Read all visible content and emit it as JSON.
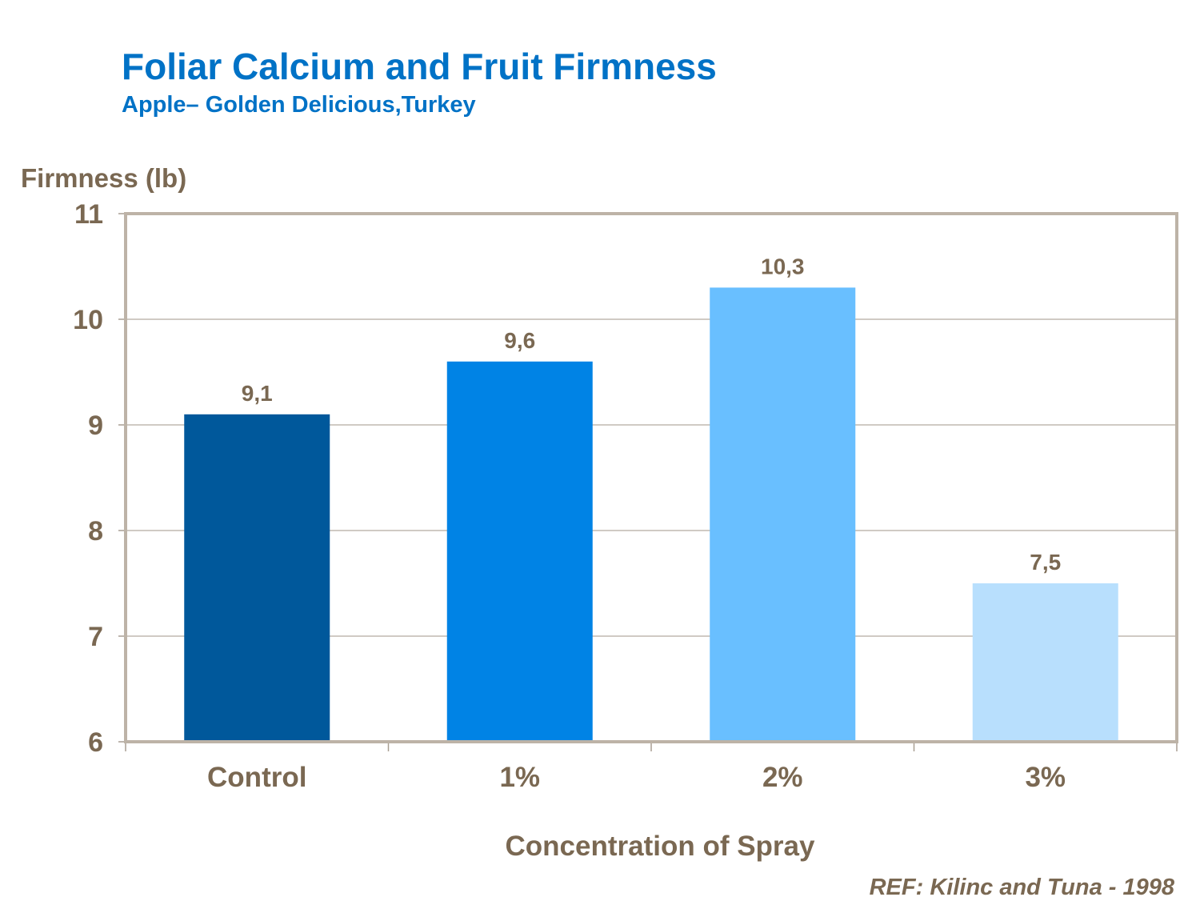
{
  "chart_data": {
    "type": "bar",
    "title": "Foliar Calcium and Fruit Firmness",
    "subtitle": "Apple– Golden Delicious,Turkey",
    "ylabel": "Firmness (lb)",
    "xlabel": "Concentration of Spray",
    "categories": [
      "Control",
      "1%",
      "2%",
      "3%"
    ],
    "values": [
      9.1,
      9.6,
      10.3,
      7.5
    ],
    "data_labels": [
      "9,1",
      "9,6",
      "10,3",
      "7,5"
    ],
    "colors": [
      "#00589B",
      "#0083E5",
      "#69BFFF",
      "#B8DFFD"
    ],
    "ylim": [
      6,
      11
    ],
    "yticks": [
      6,
      7,
      8,
      9,
      10,
      11
    ],
    "grid": true,
    "legend": "none",
    "annotation": "REF: Kilinc and Tuna - 1998"
  }
}
